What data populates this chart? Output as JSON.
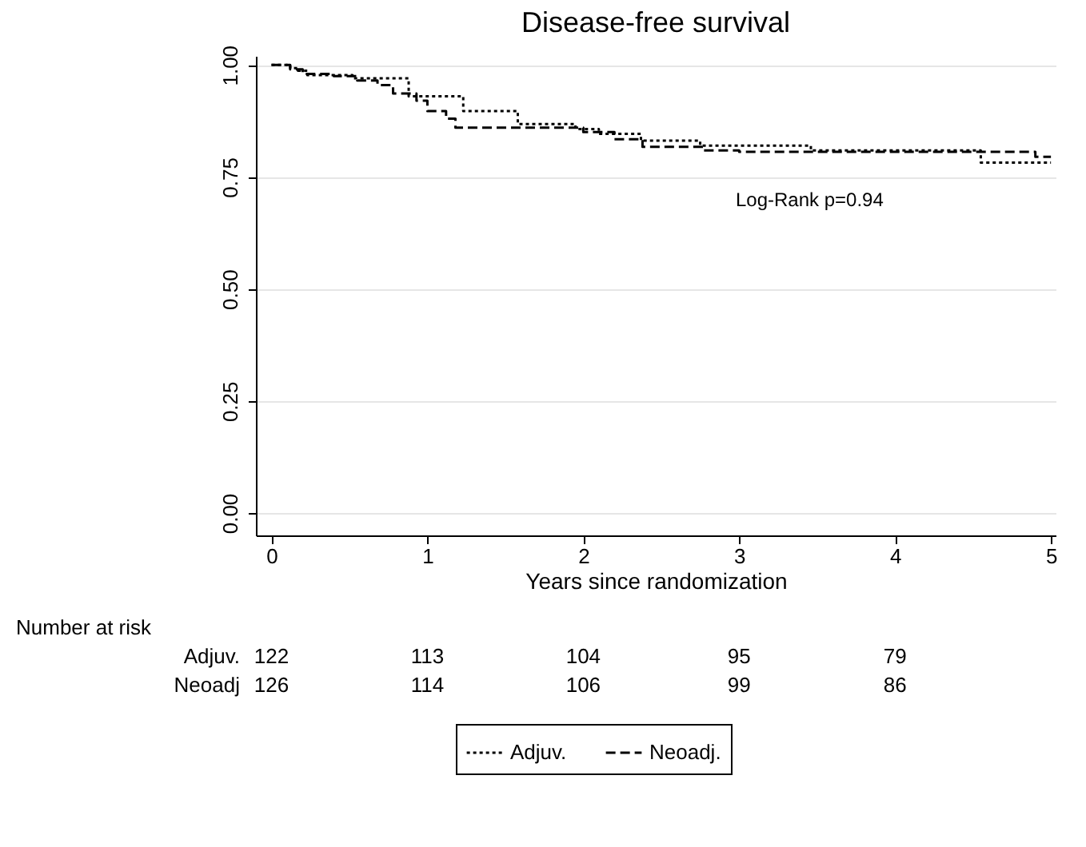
{
  "chart_data": {
    "type": "step",
    "title": "Disease-free survival",
    "xlabel": "Years since randomization",
    "xlim": [
      -0.1,
      5.03
    ],
    "xticks": [
      0,
      1,
      2,
      3,
      4,
      5
    ],
    "ylim": [
      -0.05,
      1.02
    ],
    "yticks": [
      {
        "value": 0,
        "label": "0.00"
      },
      0.25,
      {
        "value": 0.5,
        "label": "0.50"
      },
      0.75,
      {
        "value": 1,
        "label": "1.00"
      }
    ],
    "grid": "y",
    "legend": "bottom",
    "series": [
      {
        "name": "Adjuv.",
        "color": "#000000",
        "line_style": "dotted",
        "x": [
          0,
          0.12,
          0.17,
          0.23,
          0.52,
          0.88,
          1.23,
          1.58,
          1.95,
          2.1,
          2.37,
          2.75,
          3.46,
          4.55,
          5.0
        ],
        "values": [
          1.0,
          0.993,
          0.987,
          0.977,
          0.97,
          0.93,
          0.897,
          0.868,
          0.857,
          0.846,
          0.831,
          0.82,
          0.809,
          0.782,
          0.782
        ]
      },
      {
        "name": "Neoadj.",
        "color": "#000000",
        "line_style": "dashed",
        "x": [
          0,
          0.12,
          0.2,
          0.4,
          0.55,
          0.68,
          0.78,
          0.93,
          1.0,
          1.12,
          1.18,
          2.0,
          2.2,
          2.38,
          2.76,
          3.0,
          4.9,
          5.0
        ],
        "values": [
          1.0,
          0.99,
          0.98,
          0.975,
          0.965,
          0.955,
          0.936,
          0.92,
          0.897,
          0.88,
          0.86,
          0.85,
          0.834,
          0.817,
          0.809,
          0.806,
          0.795,
          0.795
        ]
      }
    ],
    "annotations": [
      "Log-Rank p=0.94",
      "Number at risk",
      "Adjuv.",
      "122",
      "113",
      "104",
      "95",
      "79",
      "Neoadj",
      "126",
      "114",
      "106",
      "99",
      "86"
    ]
  }
}
